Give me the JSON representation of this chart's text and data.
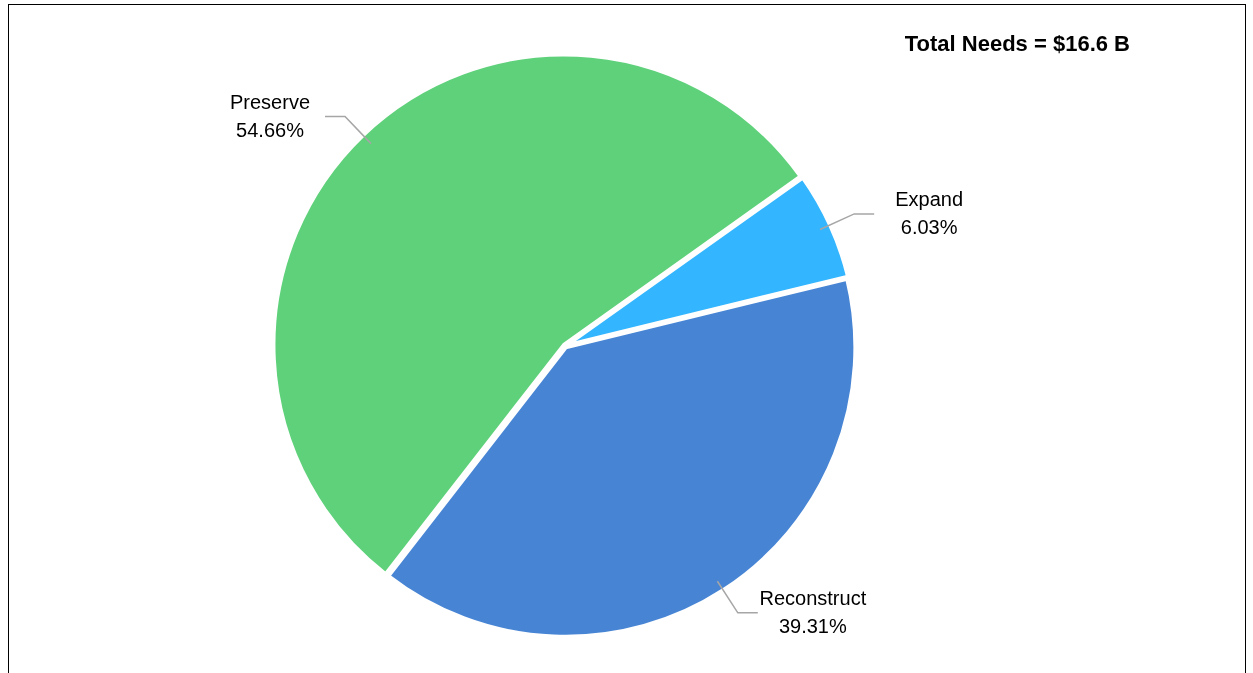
{
  "chart_data": {
    "type": "pie",
    "title": "Total Needs = $16.6 B",
    "categories": [
      "Expand",
      "Reconstruct",
      "Preserve"
    ],
    "values": [
      6.03,
      39.31,
      54.66
    ],
    "colors": [
      "#33b5ff",
      "#4785d4",
      "#5ed17a"
    ],
    "value_labels": [
      "6.03%",
      "39.31%",
      "54.66%"
    ],
    "legend": false
  }
}
